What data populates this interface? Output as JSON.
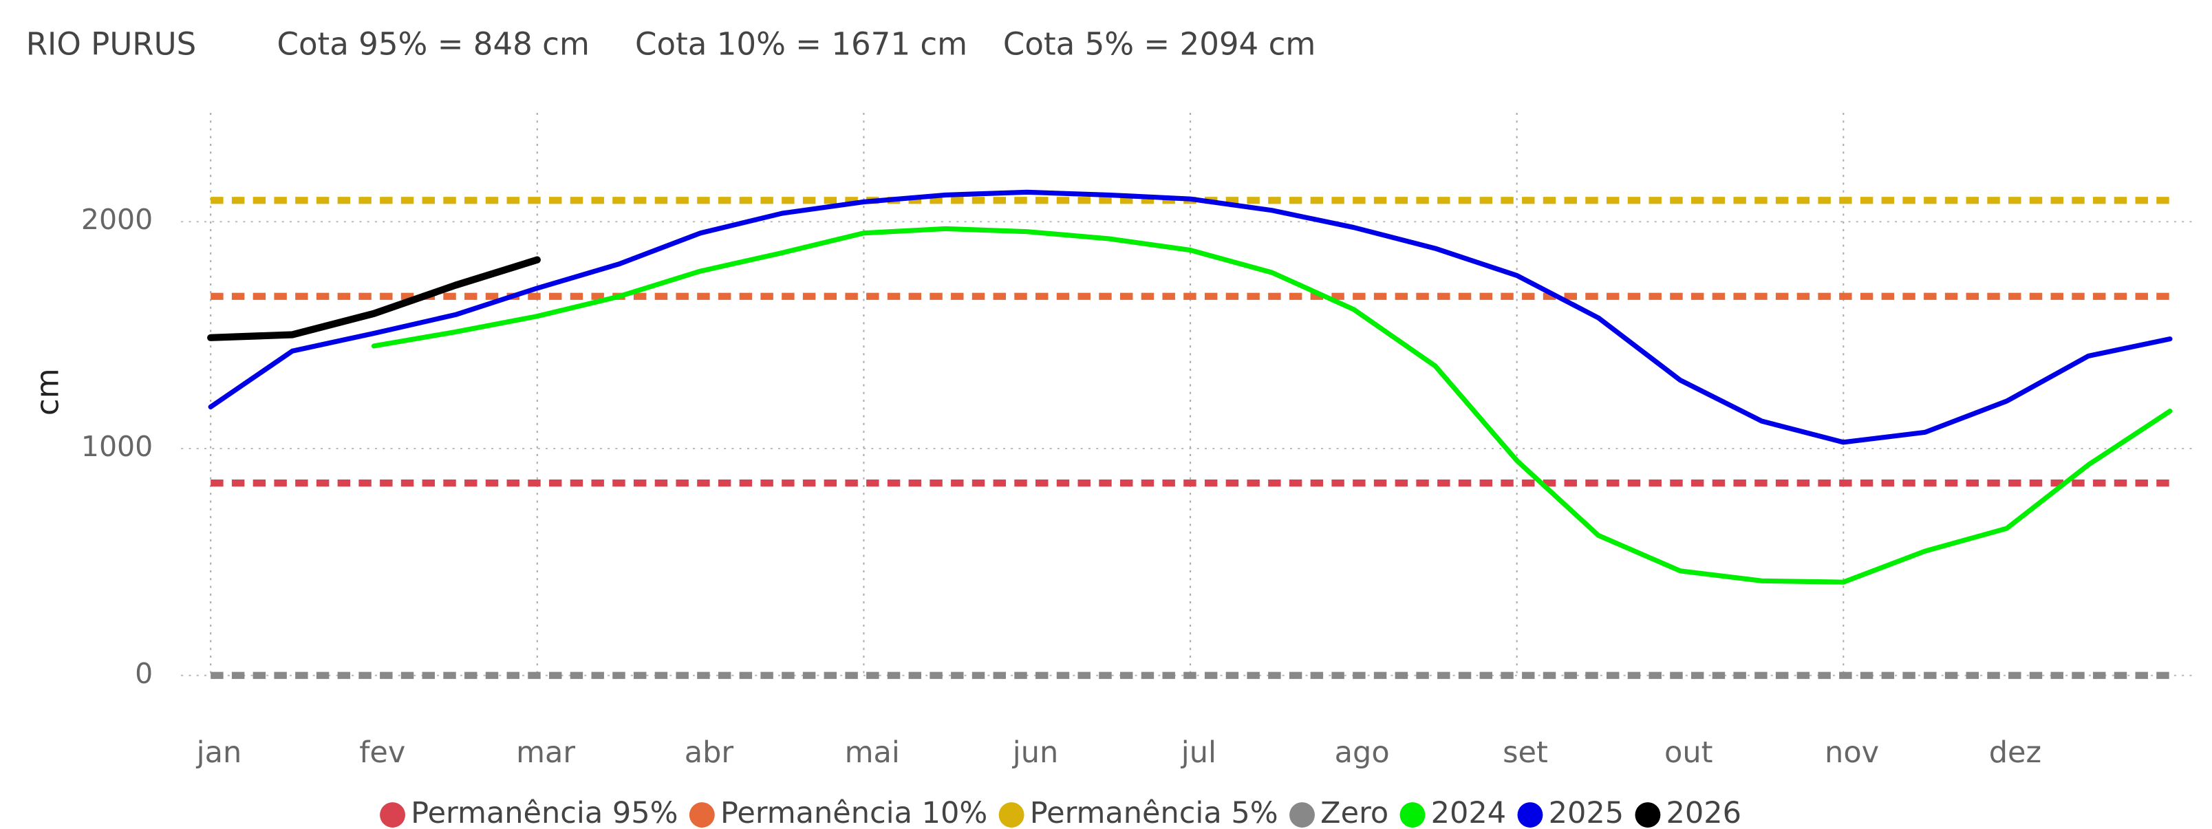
{
  "chart_data": {
    "type": "line",
    "title": "RIO PURUS",
    "subtitle": [
      "Cota 95% = 848 cm",
      "Cota 10% = 1671 cm",
      "Cota 5% = 2094 cm"
    ],
    "y_label": "cm",
    "categories": [
      "jan",
      null,
      "fev",
      null,
      "mar",
      null,
      "abr",
      null,
      "mai",
      null,
      "jun",
      null,
      "jul",
      null,
      "ago",
      null,
      "set",
      null,
      "out",
      null,
      "nov",
      null,
      "dez",
      null,
      null
    ],
    "ylim": [
      -130,
      2480
    ],
    "yticks": [
      0,
      1000,
      2000
    ],
    "grid": true,
    "legend": "bottom",
    "reference_lines": [
      {
        "name": "Permanência 95%",
        "value": 848,
        "color": "#d9434f"
      },
      {
        "name": "Permanência 10%",
        "value": 1671,
        "color": "#e6693a"
      },
      {
        "name": "Permanência 5%",
        "value": 2094,
        "color": "#d8b20a"
      },
      {
        "name": "Zero",
        "value": 0,
        "color": "#888888"
      }
    ],
    "series": [
      {
        "name": "2024",
        "color": "#00ee00",
        "values": [
          null,
          null,
          1452,
          1514,
          1583,
          1670,
          1782,
          1863,
          1950,
          1969,
          1956,
          1925,
          1875,
          1776,
          1614,
          1364,
          947,
          617,
          461,
          417,
          411,
          548,
          648,
          928,
          1165
        ]
      },
      {
        "name": "2025",
        "color": "#0000e6",
        "values": [
          1184,
          1430,
          1508,
          1590,
          1707,
          1813,
          1950,
          2037,
          2087,
          2118,
          2130,
          2118,
          2100,
          2050,
          1975,
          1882,
          1763,
          1576,
          1302,
          1121,
          1028,
          1072,
          1209,
          1408,
          1483
        ]
      },
      {
        "name": "2026",
        "color": "#000000",
        "values": [
          1489,
          1502,
          1595,
          1720,
          1832,
          null,
          null,
          null,
          null,
          null,
          null,
          null,
          null,
          null,
          null,
          null,
          null,
          null,
          null,
          null,
          null,
          null,
          null,
          null,
          null
        ]
      }
    ]
  }
}
